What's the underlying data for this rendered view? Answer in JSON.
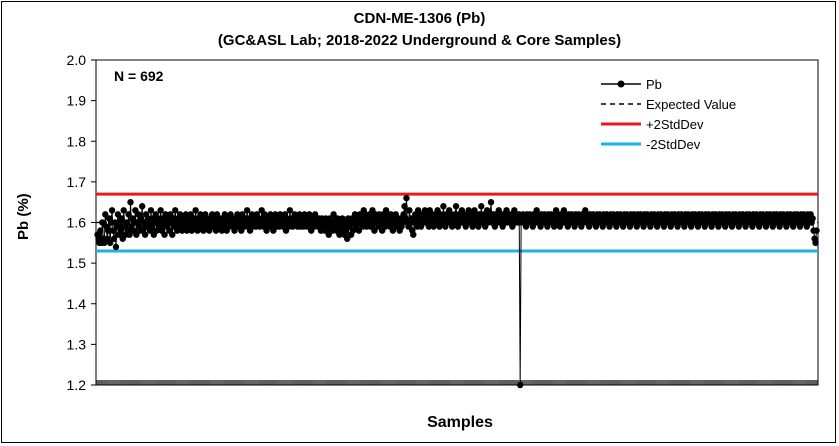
{
  "chart_data": {
    "type": "line",
    "title": "CDN-ME-1306 (Pb)",
    "subtitle": "(GC&ASL Lab; 2018-2022 Underground & Core Samples)",
    "xlabel": "Samples",
    "ylabel": "Pb (%)",
    "ylim": [
      1.2,
      2.0
    ],
    "yticks": [
      "1.2",
      "1.3",
      "1.4",
      "1.5",
      "1.6",
      "1.7",
      "1.8",
      "1.9",
      "2.0"
    ],
    "grid": "horizontal-none",
    "annotation": "N = 692",
    "n_samples": 692,
    "legend_position": "top-right",
    "legend": [
      "Pb",
      "Expected Value",
      "+2StdDev",
      "-2StdDev"
    ],
    "reference_lines": [
      {
        "name": "Expected Value",
        "value": 1.6,
        "style": "dashed",
        "color": "#000000"
      },
      {
        "name": "+2StdDev",
        "value": 1.67,
        "color": "#e8191c"
      },
      {
        "name": "-2StdDev",
        "value": 1.53,
        "color": "#1ab2e8"
      }
    ],
    "series": [
      {
        "name": "Pb",
        "color": "#000000",
        "values": [
          1.57,
          1.56,
          1.55,
          1.58,
          1.55,
          1.6,
          1.56,
          1.55,
          1.62,
          1.59,
          1.56,
          1.58,
          1.61,
          1.55,
          1.6,
          1.63,
          1.58,
          1.56,
          1.6,
          1.54,
          1.59,
          1.62,
          1.57,
          1.6,
          1.58,
          1.61,
          1.56,
          1.63,
          1.59,
          1.57,
          1.6,
          1.58,
          1.62,
          1.57,
          1.65,
          1.59,
          1.61,
          1.58,
          1.6,
          1.63,
          1.57,
          1.6,
          1.62,
          1.59,
          1.58,
          1.61,
          1.64,
          1.58,
          1.6,
          1.57,
          1.62,
          1.59,
          1.61,
          1.6,
          1.58,
          1.63,
          1.59,
          1.61,
          1.57,
          1.6,
          1.62,
          1.58,
          1.61,
          1.59,
          1.6,
          1.63,
          1.58,
          1.61,
          1.59,
          1.57,
          1.62,
          1.6,
          1.59,
          1.61,
          1.58,
          1.62,
          1.6,
          1.57,
          1.61,
          1.59,
          1.63,
          1.6,
          1.58,
          1.61,
          1.59,
          1.62,
          1.6,
          1.58,
          1.61,
          1.59,
          1.6,
          1.62,
          1.58,
          1.61,
          1.6,
          1.59,
          1.62,
          1.58,
          1.6,
          1.61,
          1.59,
          1.63,
          1.6,
          1.58,
          1.61,
          1.6,
          1.62,
          1.59,
          1.61,
          1.58,
          1.6,
          1.62,
          1.59,
          1.61,
          1.6,
          1.58,
          1.61,
          1.6,
          1.62,
          1.59,
          1.61,
          1.6,
          1.58,
          1.62,
          1.6,
          1.59,
          1.61,
          1.6,
          1.58,
          1.61,
          1.59,
          1.62,
          1.6,
          1.58,
          1.61,
          1.6,
          1.59,
          1.62,
          1.6,
          1.61,
          1.59,
          1.58,
          1.61,
          1.6,
          1.62,
          1.59,
          1.61,
          1.6,
          1.58,
          1.62,
          1.6,
          1.59,
          1.61,
          1.6,
          1.63,
          1.59,
          1.61,
          1.58,
          1.6,
          1.62,
          1.59,
          1.61,
          1.6,
          1.59,
          1.62,
          1.6,
          1.61,
          1.59,
          1.6,
          1.63,
          1.61,
          1.59,
          1.62,
          1.6,
          1.58,
          1.61,
          1.6,
          1.59,
          1.62,
          1.6,
          1.61,
          1.58,
          1.6,
          1.62,
          1.59,
          1.61,
          1.6,
          1.59,
          1.62,
          1.6,
          1.61,
          1.59,
          1.6,
          1.62,
          1.58,
          1.61,
          1.6,
          1.59,
          1.63,
          1.6,
          1.61,
          1.59,
          1.6,
          1.62,
          1.6,
          1.61,
          1.59,
          1.6,
          1.62,
          1.59,
          1.61,
          1.6,
          1.59,
          1.62,
          1.6,
          1.61,
          1.59,
          1.6,
          1.62,
          1.6,
          1.58,
          1.61,
          1.6,
          1.59,
          1.62,
          1.61,
          1.6,
          1.59,
          1.61,
          1.6,
          1.58,
          1.61,
          1.59,
          1.6,
          1.58,
          1.61,
          1.59,
          1.6,
          1.57,
          1.61,
          1.59,
          1.6,
          1.58,
          1.62,
          1.59,
          1.6,
          1.58,
          1.61,
          1.59,
          1.57,
          1.6,
          1.58,
          1.61,
          1.59,
          1.57,
          1.6,
          1.58,
          1.56,
          1.61,
          1.59,
          1.6,
          1.57,
          1.61,
          1.58,
          1.6,
          1.62,
          1.59,
          1.61,
          1.6,
          1.58,
          1.62,
          1.6,
          1.61,
          1.59,
          1.63,
          1.6,
          1.62,
          1.59,
          1.61,
          1.6,
          1.62,
          1.59,
          1.61,
          1.63,
          1.6,
          1.58,
          1.62,
          1.61,
          1.6,
          1.59,
          1.62,
          1.61,
          1.6,
          1.58,
          1.62,
          1.61,
          1.59,
          1.63,
          1.6,
          1.62,
          1.61,
          1.59,
          1.62,
          1.6,
          1.58,
          1.61,
          1.6,
          1.62,
          1.59,
          1.61,
          1.6,
          1.58,
          1.61,
          1.59,
          1.6,
          1.62,
          1.64,
          1.61,
          1.66,
          1.6,
          1.59,
          1.63,
          1.6,
          1.61,
          1.58,
          1.57,
          1.6,
          1.62,
          1.61,
          1.59,
          1.63,
          1.6,
          1.61,
          1.59,
          1.62,
          1.6,
          1.61,
          1.63,
          1.6,
          1.62,
          1.61,
          1.59,
          1.63,
          1.6,
          1.62,
          1.61,
          1.59,
          1.62,
          1.6,
          1.61,
          1.63,
          1.6,
          1.59,
          1.62,
          1.61,
          1.6,
          1.64,
          1.61,
          1.59,
          1.62,
          1.6,
          1.61,
          1.63,
          1.6,
          1.62,
          1.59,
          1.61,
          1.6,
          1.62,
          1.64,
          1.61,
          1.59,
          1.62,
          1.6,
          1.61,
          1.63,
          1.6,
          1.62,
          1.61,
          1.59,
          1.62,
          1.6,
          1.63,
          1.61,
          1.6,
          1.62,
          1.59,
          1.61,
          1.63,
          1.6,
          1.62,
          1.61,
          1.59,
          1.62,
          1.6,
          1.64,
          1.61,
          1.6,
          1.62,
          1.59,
          1.61,
          1.63,
          1.6,
          1.62,
          1.61,
          1.65,
          1.6,
          1.62,
          1.61,
          1.59,
          1.62,
          1.6,
          1.61,
          1.63,
          1.6,
          1.62,
          1.61,
          1.59,
          1.62,
          1.6,
          1.61,
          1.63,
          1.6,
          1.62,
          1.61,
          1.6,
          1.62,
          1.59,
          1.61,
          1.63,
          1.6,
          1.62,
          1.61,
          1.6,
          1.62,
          1.2,
          1.6,
          1.61,
          1.62,
          1.6,
          1.61,
          1.59,
          1.62,
          1.6,
          1.61,
          1.62,
          1.6,
          1.61,
          1.59,
          1.62,
          1.6,
          1.61,
          1.63,
          1.6,
          1.62,
          1.61,
          1.59,
          1.62,
          1.6,
          1.61,
          1.62,
          1.6,
          1.61,
          1.59,
          1.62,
          1.6,
          1.61,
          1.62,
          1.6,
          1.61,
          1.59,
          1.62,
          1.63,
          1.6,
          1.62,
          1.61,
          1.59,
          1.62,
          1.6,
          1.61,
          1.63,
          1.6,
          1.62,
          1.61,
          1.59,
          1.62,
          1.6,
          1.61,
          1.62,
          1.6,
          1.61,
          1.59,
          1.62,
          1.6,
          1.61,
          1.62,
          1.6,
          1.61,
          1.59,
          1.62,
          1.6,
          1.61,
          1.63,
          1.6,
          1.62,
          1.61,
          1.59,
          1.62,
          1.6,
          1.61,
          1.62,
          1.6,
          1.61,
          1.59,
          1.62,
          1.6,
          1.61,
          1.62,
          1.6,
          1.61,
          1.59,
          1.62,
          1.6,
          1.61,
          1.62,
          1.6,
          1.61,
          1.59,
          1.62,
          1.6,
          1.61,
          1.62,
          1.6,
          1.61,
          1.59,
          1.62,
          1.6,
          1.61,
          1.62,
          1.6,
          1.61,
          1.59,
          1.62,
          1.6,
          1.61,
          1.62,
          1.6,
          1.61,
          1.59,
          1.62,
          1.6,
          1.61,
          1.62,
          1.6,
          1.61,
          1.59,
          1.62,
          1.6,
          1.61,
          1.62,
          1.6,
          1.61,
          1.59,
          1.62,
          1.6,
          1.61,
          1.62,
          1.6,
          1.61,
          1.59,
          1.62,
          1.6,
          1.61,
          1.62,
          1.6,
          1.61,
          1.59,
          1.62,
          1.6,
          1.61,
          1.62,
          1.6,
          1.61,
          1.59,
          1.62,
          1.6,
          1.61,
          1.62,
          1.6,
          1.61,
          1.59,
          1.62,
          1.6,
          1.61,
          1.62,
          1.6,
          1.61,
          1.59,
          1.62,
          1.6,
          1.61,
          1.62,
          1.6,
          1.61,
          1.59,
          1.62,
          1.6,
          1.61,
          1.62,
          1.6,
          1.61,
          1.59,
          1.62,
          1.6,
          1.61,
          1.62,
          1.6,
          1.61,
          1.59,
          1.62,
          1.6,
          1.61,
          1.62,
          1.6,
          1.61,
          1.59,
          1.62,
          1.6,
          1.61,
          1.62,
          1.6,
          1.61,
          1.59,
          1.62,
          1.6,
          1.61,
          1.62,
          1.6,
          1.61,
          1.59,
          1.62,
          1.6,
          1.61,
          1.62,
          1.6,
          1.61,
          1.59,
          1.62,
          1.6,
          1.61,
          1.62,
          1.6,
          1.61,
          1.59,
          1.62,
          1.6,
          1.61,
          1.62,
          1.6,
          1.61,
          1.59,
          1.62,
          1.6,
          1.61,
          1.62,
          1.6,
          1.61,
          1.59,
          1.62,
          1.6,
          1.61,
          1.62,
          1.6,
          1.61,
          1.59,
          1.62,
          1.6,
          1.61,
          1.62,
          1.6,
          1.61,
          1.59,
          1.62,
          1.6,
          1.61,
          1.62,
          1.6,
          1.61,
          1.59,
          1.62,
          1.6,
          1.61,
          1.62,
          1.6,
          1.61,
          1.59,
          1.62,
          1.6,
          1.61,
          1.62,
          1.6,
          1.61,
          1.59,
          1.62,
          1.6,
          1.61,
          1.62,
          1.6,
          1.61,
          1.59,
          1.62,
          1.6,
          1.61,
          1.62,
          1.6,
          1.61,
          1.59,
          1.62,
          1.6,
          1.61,
          1.62,
          1.6,
          1.61,
          1.59,
          1.62,
          1.6,
          1.61,
          1.62,
          1.6,
          1.61,
          1.59,
          1.62,
          1.6,
          1.61,
          1.62,
          1.6,
          1.61,
          1.58,
          1.56,
          1.55,
          1.58
        ]
      }
    ]
  }
}
